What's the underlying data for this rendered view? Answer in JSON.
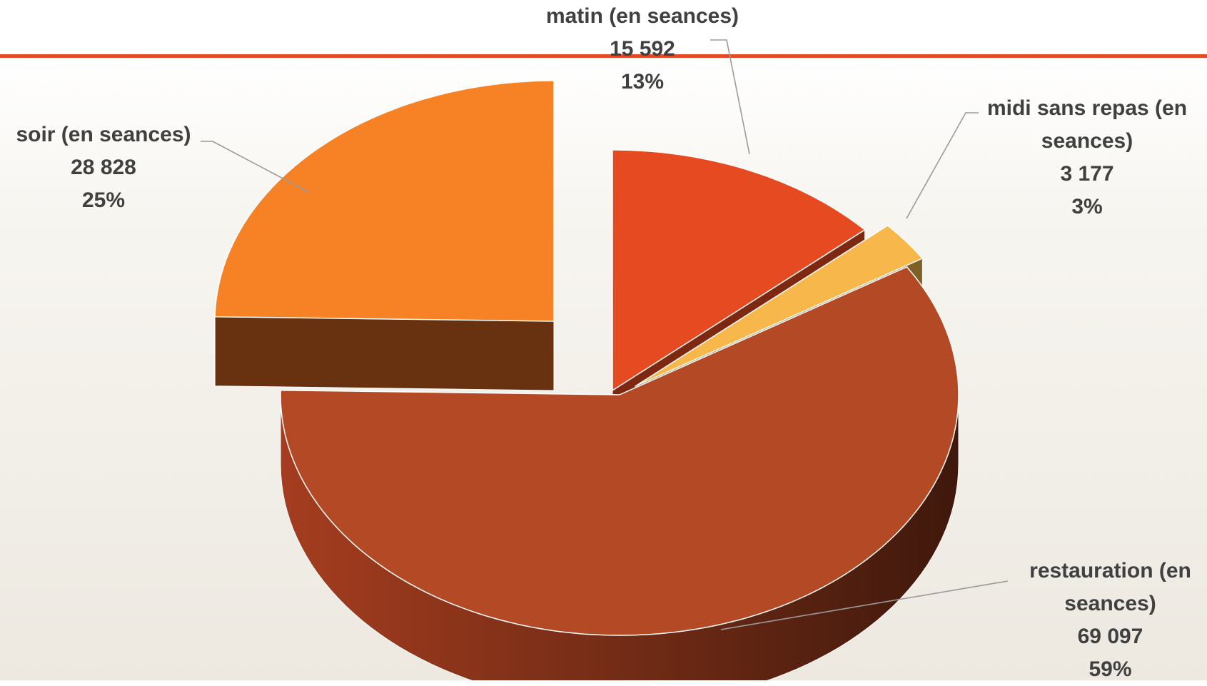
{
  "colors": {
    "rule": "#E64A25",
    "label_text": "#404040",
    "leader": "#9a9a9a"
  },
  "chart_data": {
    "type": "pie",
    "variant": "3d-exploded",
    "legend": "none",
    "slices": [
      {
        "label": "matin (en seances)",
        "value": 15592,
        "value_label": "15 592",
        "percent": "13%",
        "color": "#E64A21",
        "side_color": "#7E2711"
      },
      {
        "label": "midi sans repas (en seances)",
        "value": 3177,
        "value_label": "3 177",
        "percent": "3%",
        "color": "#F8B74A",
        "side_color": "#7E5F26"
      },
      {
        "label": "restauration (en seances)",
        "value": 69097,
        "value_label": "69 097",
        "percent": "59%",
        "color": "#B34A25",
        "side_color": "#5A2212"
      },
      {
        "label": "soir (en seances)",
        "value": 28828,
        "value_label": "28 828",
        "percent": "25%",
        "color": "#F78125",
        "side_color": "#683210"
      }
    ]
  }
}
